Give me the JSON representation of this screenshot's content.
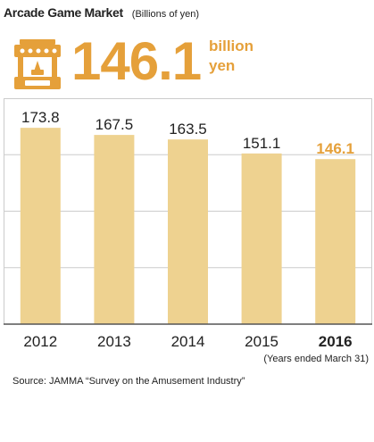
{
  "header": {
    "title": "Arcade Game Market",
    "subtitle": "(Billions of yen)",
    "headline_value": "146.1",
    "headline_unit_line1": "billion",
    "headline_unit_line2": "yen"
  },
  "icons": {
    "headline_icon": "arcade-stall-icon"
  },
  "colors": {
    "accent": "#e5a03a",
    "bar": "#eed290",
    "grid": "#cccccc",
    "text": "#222222"
  },
  "chart_data": {
    "type": "bar",
    "categories": [
      "2012",
      "2013",
      "2014",
      "2015",
      "2016"
    ],
    "values": [
      173.8,
      167.5,
      163.5,
      151.1,
      146.1
    ],
    "value_labels": [
      "173.8",
      "167.5",
      "163.5",
      "151.1",
      "146.1"
    ],
    "highlight_index": 4,
    "ylim": [
      0,
      200
    ],
    "grid": true,
    "xlabel": "",
    "ylabel": ""
  },
  "footer": {
    "note": "(Years ended March 31)",
    "source": "Source: JAMMA “Survey on the Amusement Industry”"
  }
}
